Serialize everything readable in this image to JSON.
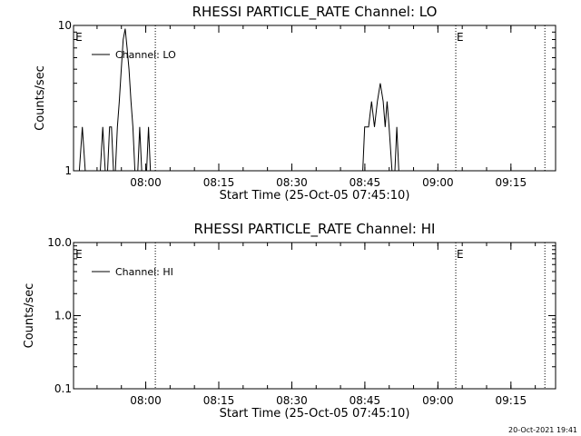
{
  "footer": {
    "timestamp": "20-Oct-2021 19:41"
  },
  "chart_data": [
    {
      "type": "line",
      "title": "RHESSI PARTICLE_RATE Channel: LO",
      "xlabel": "Start Time (25-Oct-05 07:45:10)",
      "ylabel": "Counts/sec",
      "yscale": "log",
      "xlim_min": [
        0,
        99
      ],
      "ylim": [
        1,
        10
      ],
      "y_ticks": [
        {
          "v": 1,
          "label": "1"
        },
        {
          "v": 10,
          "label": "10"
        }
      ],
      "x_ticks": [
        {
          "m": 14.83,
          "label": "08:00"
        },
        {
          "m": 29.83,
          "label": "08:15"
        },
        {
          "m": 44.83,
          "label": "08:30"
        },
        {
          "m": 59.83,
          "label": "08:45"
        },
        {
          "m": 74.83,
          "label": "09:00"
        },
        {
          "m": 89.83,
          "label": "09:15"
        }
      ],
      "markers": [
        {
          "m": 0.2,
          "label": "E"
        },
        {
          "m": 78.5,
          "label": "E"
        }
      ],
      "vlines": [
        16.8,
        78.5,
        96.8
      ],
      "legend": {
        "label": "Channel: LO",
        "position": "top-left"
      },
      "series": [
        {
          "name": "Channel: LO",
          "segments": [
            [
              [
                1.2,
                1
              ],
              [
                1.8,
                2
              ],
              [
                2.4,
                1
              ]
            ],
            [
              [
                5.5,
                1
              ],
              [
                6.0,
                2
              ],
              [
                6.5,
                1
              ]
            ],
            [
              [
                7.0,
                1
              ],
              [
                7.4,
                2
              ],
              [
                7.8,
                2
              ],
              [
                8.2,
                1
              ]
            ],
            [
              [
                8.6,
                1
              ],
              [
                9.0,
                2
              ],
              [
                9.4,
                3
              ],
              [
                9.8,
                5
              ],
              [
                10.2,
                8
              ],
              [
                10.6,
                9.5
              ],
              [
                11.0,
                7
              ],
              [
                11.4,
                5
              ],
              [
                11.8,
                3
              ],
              [
                12.2,
                2
              ],
              [
                12.6,
                1
              ]
            ],
            [
              [
                13.2,
                1
              ],
              [
                13.6,
                2
              ],
              [
                14.0,
                1
              ]
            ],
            [
              [
                15.0,
                1
              ],
              [
                15.4,
                2
              ],
              [
                15.8,
                1
              ]
            ],
            [
              [
                59.4,
                1
              ],
              [
                59.8,
                2
              ],
              [
                60.6,
                2
              ],
              [
                61.2,
                3
              ],
              [
                61.8,
                2
              ],
              [
                62.4,
                3
              ],
              [
                63.0,
                4
              ],
              [
                63.6,
                3
              ],
              [
                64.0,
                2
              ],
              [
                64.4,
                3
              ],
              [
                64.8,
                2
              ],
              [
                65.4,
                1
              ]
            ],
            [
              [
                66.0,
                1
              ],
              [
                66.4,
                2
              ],
              [
                66.8,
                1
              ]
            ]
          ]
        }
      ]
    },
    {
      "type": "line",
      "title": "RHESSI PARTICLE_RATE Channel: HI",
      "xlabel": "Start Time (25-Oct-05 07:45:10)",
      "ylabel": "Counts/sec",
      "yscale": "log",
      "xlim_min": [
        0,
        99
      ],
      "ylim": [
        0.1,
        10
      ],
      "y_ticks": [
        {
          "v": 0.1,
          "label": "0.1"
        },
        {
          "v": 1,
          "label": "1.0"
        },
        {
          "v": 10,
          "label": "10.0"
        }
      ],
      "x_ticks": [
        {
          "m": 14.83,
          "label": "08:00"
        },
        {
          "m": 29.83,
          "label": "08:15"
        },
        {
          "m": 44.83,
          "label": "08:30"
        },
        {
          "m": 59.83,
          "label": "08:45"
        },
        {
          "m": 74.83,
          "label": "09:00"
        },
        {
          "m": 89.83,
          "label": "09:15"
        }
      ],
      "markers": [
        {
          "m": 0.2,
          "label": "E"
        },
        {
          "m": 78.5,
          "label": "E"
        }
      ],
      "vlines": [
        16.8,
        78.5,
        96.8
      ],
      "legend": {
        "label": "Channel: HI",
        "position": "top-left"
      },
      "series": [
        {
          "name": "Channel: HI",
          "segments": []
        }
      ]
    }
  ]
}
